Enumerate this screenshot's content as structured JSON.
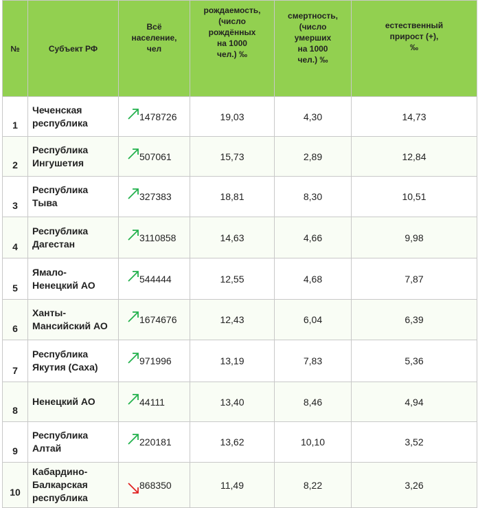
{
  "header": {
    "col_num": "№",
    "col_subject": "Субъект РФ",
    "col_population": [
      "Всё",
      "население,",
      "чел"
    ],
    "col_birth": [
      "рождаемость,",
      "(число",
      "рождённых",
      "на 1000",
      "чел.) ‰"
    ],
    "col_death": [
      "смертность,",
      "(число",
      "умерших",
      "на 1000",
      "чел.) ‰"
    ],
    "col_growth": [
      "естественный",
      "прирост (+),",
      "‰"
    ]
  },
  "rows": [
    {
      "num": "1",
      "subject": [
        "Чеченская",
        "республика"
      ],
      "trend": "up",
      "population": "1478726",
      "birth": "19,03",
      "death": "4,30",
      "growth": "14,73"
    },
    {
      "num": "2",
      "subject": [
        "Республика",
        "Ингушетия"
      ],
      "trend": "up",
      "population": "507061",
      "birth": "15,73",
      "death": "2,89",
      "growth": "12,84"
    },
    {
      "num": "3",
      "subject": [
        "Республика",
        "Тыва"
      ],
      "trend": "up",
      "population": "327383",
      "birth": "18,81",
      "death": "8,30",
      "growth": "10,51"
    },
    {
      "num": "4",
      "subject": [
        "Республика",
        "Дагестан"
      ],
      "trend": "up",
      "population": "3110858",
      "birth": "14,63",
      "death": "4,66",
      "growth": "9,98"
    },
    {
      "num": "5",
      "subject": [
        "Ямало-",
        "Ненецкий АО"
      ],
      "trend": "up",
      "population": "544444",
      "birth": "12,55",
      "death": "4,68",
      "growth": "7,87"
    },
    {
      "num": "6",
      "subject": [
        "Ханты-",
        "Мансийский АО"
      ],
      "trend": "up",
      "population": "1674676",
      "birth": "12,43",
      "death": "6,04",
      "growth": "6,39"
    },
    {
      "num": "7",
      "subject": [
        "Республика",
        "Якутия (Саха)"
      ],
      "trend": "up",
      "population": "971996",
      "birth": "13,19",
      "death": "7,83",
      "growth": "5,36"
    },
    {
      "num": "8",
      "subject": [
        "Ненецкий АО"
      ],
      "trend": "up",
      "population": "44111",
      "birth": "13,40",
      "death": "8,46",
      "growth": "4,94"
    },
    {
      "num": "9",
      "subject": [
        "Республика",
        "Алтай"
      ],
      "trend": "up",
      "population": "220181",
      "birth": "13,62",
      "death": "10,10",
      "growth": "3,52"
    },
    {
      "num": "10",
      "subject": [
        "Кабардино-",
        "Балкарская",
        "республика"
      ],
      "trend": "down",
      "population": "868350",
      "birth": "11,49",
      "death": "8,22",
      "growth": "3,26"
    }
  ],
  "colors": {
    "header_bg": "#92d050",
    "trend_up": "#22b14c",
    "trend_down": "#e02020"
  }
}
